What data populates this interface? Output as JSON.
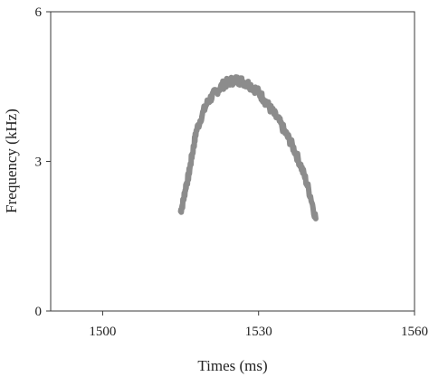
{
  "chart_data": {
    "type": "line",
    "title": "",
    "xlabel": "Times (ms)",
    "ylabel": "Frequency (kHz)",
    "xlim": [
      1490,
      1560
    ],
    "ylim": [
      0,
      6
    ],
    "xticks": [
      1500,
      1530,
      1560
    ],
    "yticks": [
      0,
      3,
      6
    ],
    "xtick_labels": [
      "1500",
      "1530",
      "1560"
    ],
    "ytick_labels": [
      "0",
      "3",
      "6"
    ],
    "grid": false,
    "legend": "none",
    "series": [
      {
        "color": "#8c8c8c",
        "x": [
          1515.0,
          1515.5,
          1516.0,
          1516.5,
          1517.0,
          1517.5,
          1518.0,
          1519.0,
          1520.0,
          1521.0,
          1522.0,
          1523.0,
          1524.0,
          1525.0,
          1526.0,
          1527.0,
          1528.0,
          1529.0,
          1530.0,
          1531.0,
          1532.0,
          1533.0,
          1534.0,
          1535.0,
          1536.0,
          1537.0,
          1538.0,
          1539.0,
          1540.0,
          1541.0
        ],
        "y": [
          2.0,
          2.2,
          2.5,
          2.7,
          3.0,
          3.3,
          3.6,
          3.9,
          4.15,
          4.3,
          4.42,
          4.52,
          4.58,
          4.62,
          4.63,
          4.6,
          4.55,
          4.48,
          4.38,
          4.25,
          4.1,
          3.95,
          3.8,
          3.6,
          3.42,
          3.2,
          2.95,
          2.65,
          2.3,
          1.85
        ]
      }
    ]
  }
}
